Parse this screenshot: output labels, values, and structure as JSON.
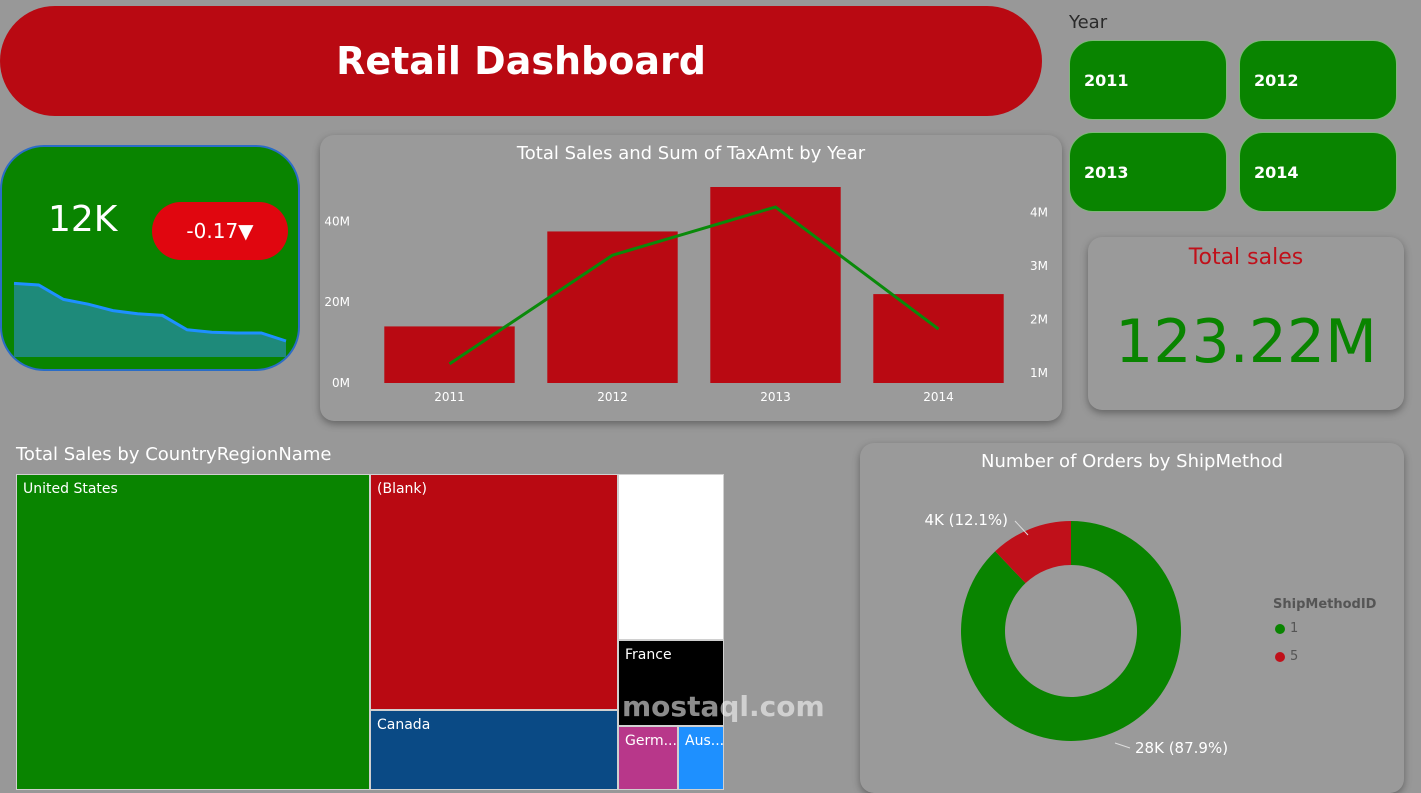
{
  "header": {
    "title": "Retail Dashboard"
  },
  "year_slicer": {
    "label": "Year",
    "options": [
      "2011",
      "2012",
      "2013",
      "2014"
    ]
  },
  "kpi": {
    "value": "12K",
    "delta": "-0.17▼",
    "trend": [
      0.92,
      0.9,
      0.72,
      0.66,
      0.58,
      0.54,
      0.52,
      0.34,
      0.31,
      0.3,
      0.3,
      0.2
    ]
  },
  "total_sales": {
    "label": "Total sales",
    "value": "123.22M"
  },
  "colors": {
    "green": "#098400",
    "red": "#b90912",
    "blue": "#0a4a85",
    "black": "#000000",
    "magenta": "#b8378a",
    "light_blue": "#1e90ff",
    "white": "#ffffff"
  },
  "chart_data": [
    {
      "type": "bar",
      "title": "Total Sales and Sum of TaxAmt by Year",
      "categories": [
        "2011",
        "2012",
        "2013",
        "2014"
      ],
      "series": [
        {
          "values": [
            14,
            37.5,
            48.5,
            22
          ],
          "axis": "left"
        },
        {
          "type": "line",
          "values": [
            1.17,
            3.2,
            4.1,
            1.82
          ],
          "axis": "right"
        }
      ],
      "y_left": {
        "ticks": [
          "0M",
          "20M",
          "40M"
        ],
        "range": [
          0,
          48.5
        ]
      },
      "y_right": {
        "ticks": [
          "1M",
          "2M",
          "3M",
          "4M"
        ],
        "range": [
          1,
          4.1
        ]
      }
    },
    {
      "type": "treemap",
      "title": "Total Sales by CountryRegionName",
      "items": [
        {
          "label": "United States",
          "color": "#098400"
        },
        {
          "label": "(Blank)",
          "color": "#b90912"
        },
        {
          "label": "",
          "color": "#ffffff"
        },
        {
          "label": "France",
          "color": "#000000"
        },
        {
          "label": "Canada",
          "color": "#0a4a85"
        },
        {
          "label": "Germ...",
          "color": "#b8378a"
        },
        {
          "label": "Aus...",
          "color": "#1e90ff"
        }
      ]
    },
    {
      "type": "pie",
      "title": "Number of Orders by ShipMethod",
      "legend_title": "ShipMethodID",
      "slices": [
        {
          "name": "1",
          "value": 87.9,
          "label": "28K (87.9%)",
          "color": "#098400"
        },
        {
          "name": "5",
          "value": 12.1,
          "label": "4K (12.1%)",
          "color": "#c0101a"
        }
      ]
    }
  ],
  "watermark": {
    "text": "mostaql.com"
  }
}
